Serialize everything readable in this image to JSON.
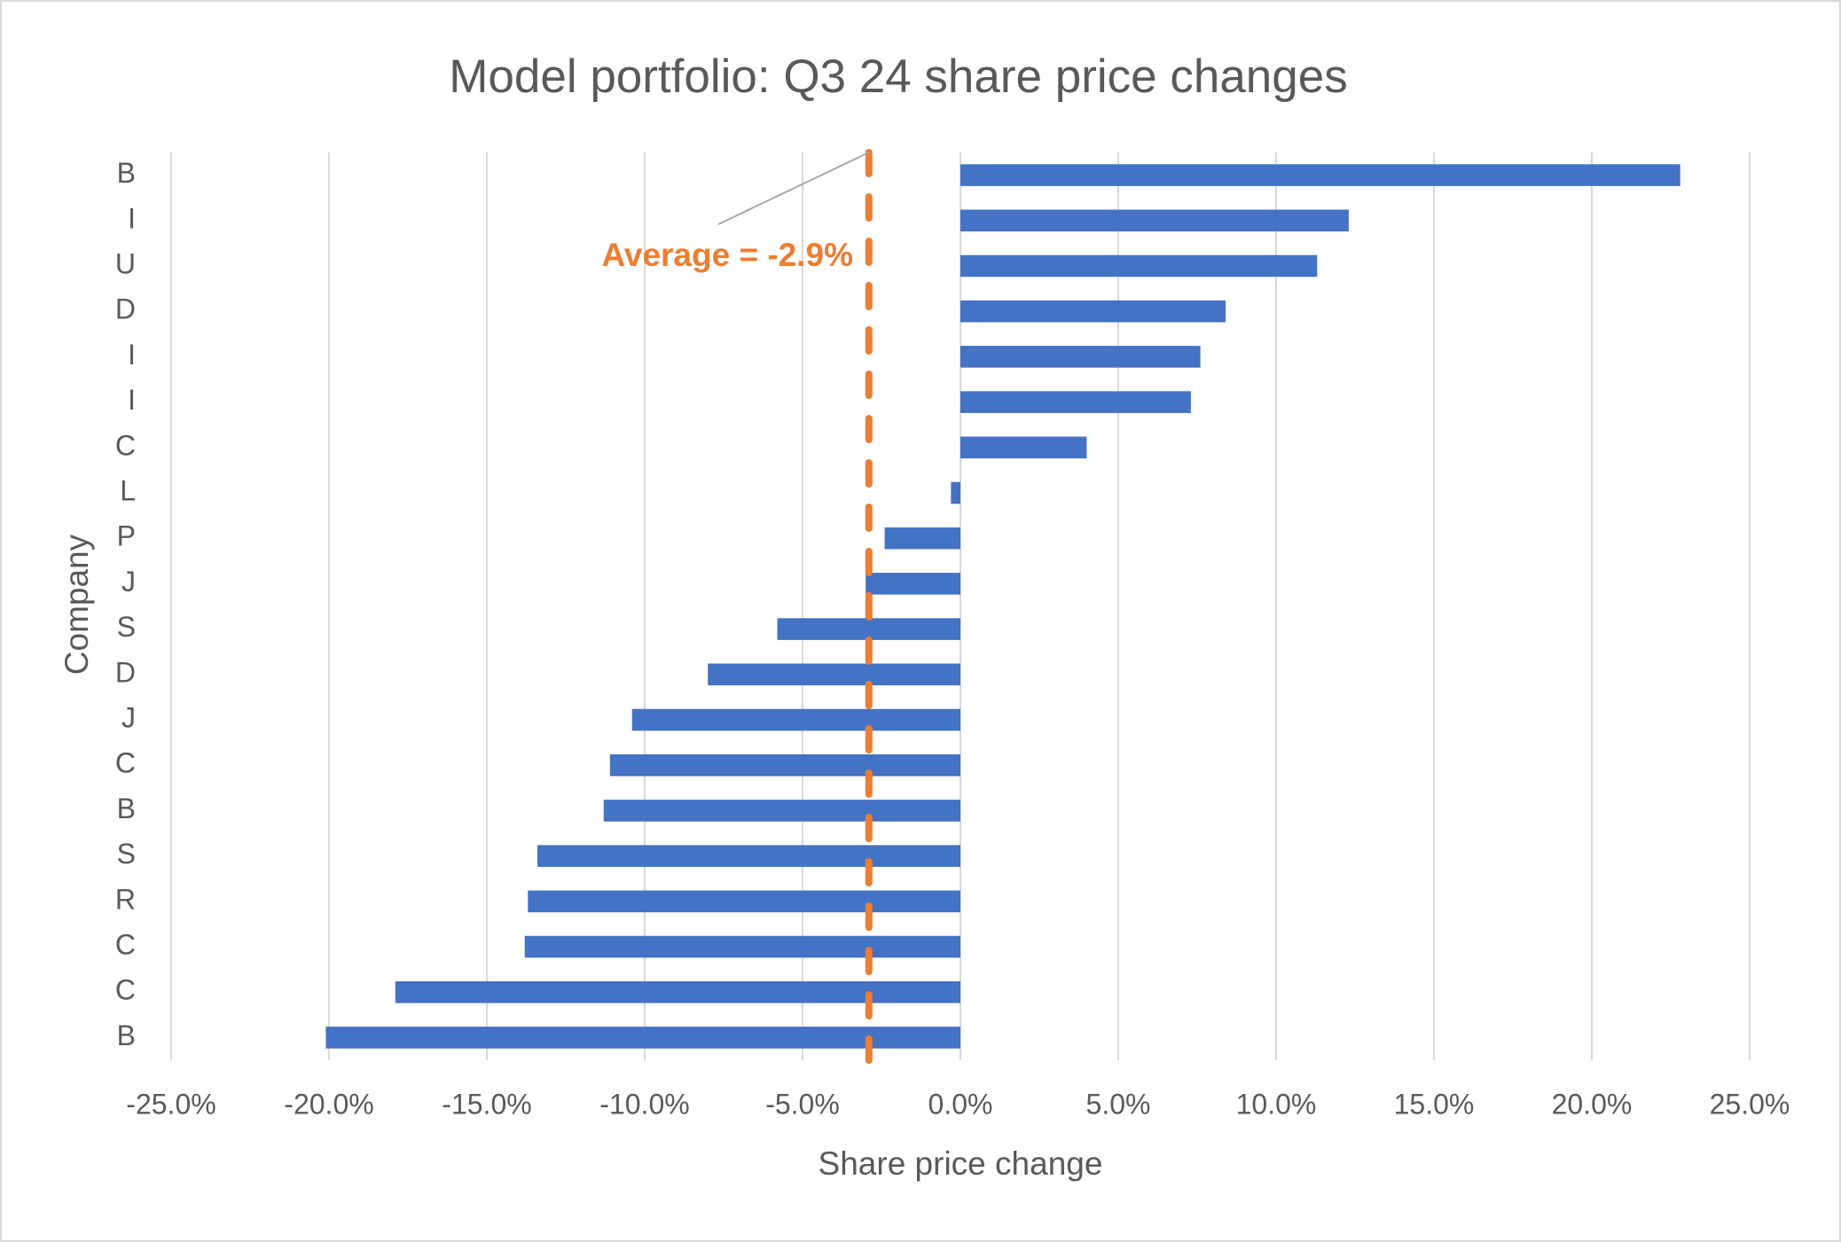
{
  "chart_data": {
    "type": "hbar",
    "title": "Model portfolio: Q3 24 share price changes",
    "x_label": "Share price change",
    "y_label": "Company",
    "categories": [
      "B",
      "I",
      "U",
      "D",
      "I",
      "I",
      "C",
      "L",
      "P",
      "J",
      "S",
      "D",
      "J",
      "C",
      "B",
      "S",
      "R",
      "C",
      "C",
      "B"
    ],
    "values": [
      22.8,
      12.3,
      11.3,
      8.4,
      7.6,
      7.3,
      4.0,
      -0.3,
      -2.4,
      -3.0,
      -5.8,
      -8.0,
      -10.4,
      -11.1,
      -11.3,
      -13.4,
      -13.7,
      -13.8,
      -17.9,
      -20.1
    ],
    "color": "#4472c4",
    "xlim": [
      -25,
      25
    ],
    "xticks": [
      {
        "value": -25,
        "label": "-25.0%"
      },
      {
        "value": -20,
        "label": "-20.0%"
      },
      {
        "value": -15,
        "label": "-15.0%"
      },
      {
        "value": -10,
        "label": "-10.0%"
      },
      {
        "value": -5,
        "label": "-5.0%"
      },
      {
        "value": 0,
        "label": "0.0%"
      },
      {
        "value": 5,
        "label": "5.0%"
      },
      {
        "value": 10,
        "label": "10.0%"
      },
      {
        "value": 15,
        "label": "15.0%"
      },
      {
        "value": 20,
        "label": "20.0%"
      },
      {
        "value": 25,
        "label": "25.0%"
      }
    ],
    "grid": true,
    "average": {
      "value": -2.9,
      "label": "Average = -2.9%",
      "color": "#ed7d31"
    }
  }
}
